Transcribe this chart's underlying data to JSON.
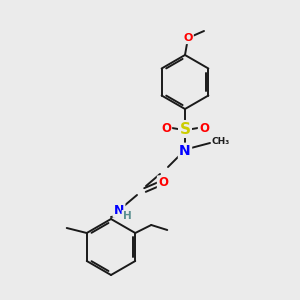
{
  "background_color": "#ebebeb",
  "bond_color": "#1a1a1a",
  "atom_colors": {
    "O": "#ff0000",
    "S": "#cccc00",
    "N": "#0000ff",
    "C": "#1a1a1a",
    "H": "#5a9090"
  },
  "figsize": [
    3.0,
    3.0
  ],
  "dpi": 100,
  "lw": 1.4
}
